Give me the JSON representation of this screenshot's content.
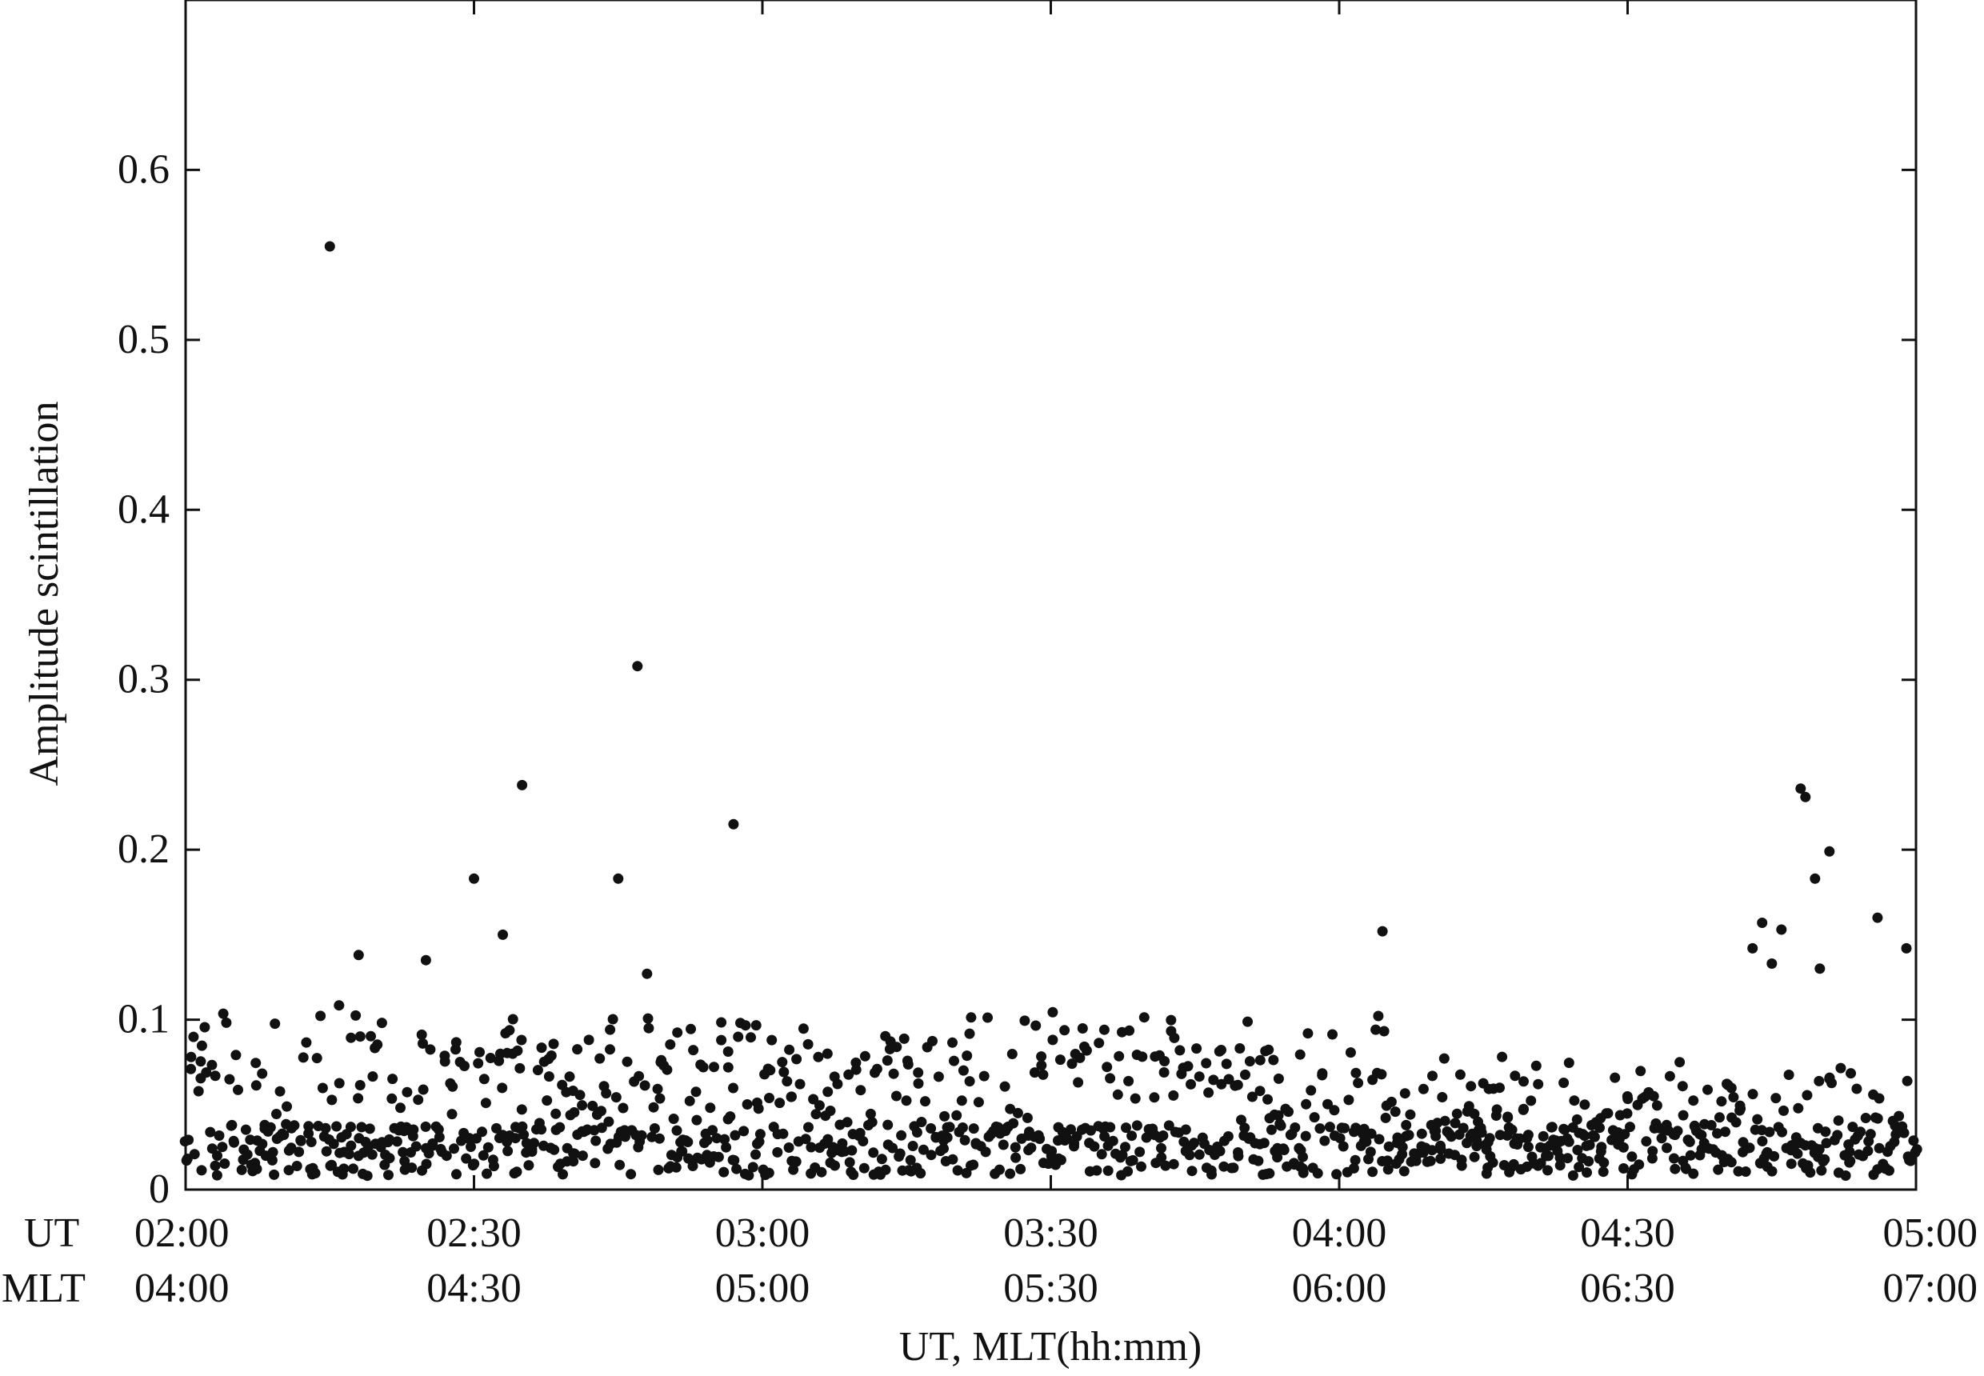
{
  "chart_data": {
    "type": "scatter",
    "title": "",
    "ylabel": "Amplitude scintillation",
    "xlabel": "UT, MLT(hh:mm)",
    "xlim": [
      0,
      180
    ],
    "ylim": [
      0,
      0.7
    ],
    "grid": false,
    "yticks": [
      {
        "value": 0,
        "label": "0"
      },
      {
        "value": 0.1,
        "label": "0.1"
      },
      {
        "value": 0.2,
        "label": "0.2"
      },
      {
        "value": 0.3,
        "label": "0.3"
      },
      {
        "value": 0.4,
        "label": "0.4"
      },
      {
        "value": 0.5,
        "label": "0.5"
      },
      {
        "value": 0.6,
        "label": "0.6"
      }
    ],
    "xtick_rows": [
      {
        "label": "UT",
        "ticks": [
          "02:00",
          "02:30",
          "03:00",
          "03:30",
          "04:00",
          "04:30",
          "05:00"
        ]
      },
      {
        "label": "MLT",
        "ticks": [
          "04:00",
          "04:30",
          "05:00",
          "05:30",
          "06:00",
          "06:30",
          "07:00"
        ]
      }
    ],
    "xtick_values": [
      0,
      30,
      60,
      90,
      120,
      150,
      180
    ],
    "highlight_points": [
      {
        "x": 15,
        "y": 0.555
      },
      {
        "x": 47,
        "y": 0.308
      },
      {
        "x": 35,
        "y": 0.238
      },
      {
        "x": 57,
        "y": 0.215
      },
      {
        "x": 168,
        "y": 0.236
      },
      {
        "x": 168.5,
        "y": 0.231
      },
      {
        "x": 171,
        "y": 0.199
      },
      {
        "x": 169.5,
        "y": 0.183
      },
      {
        "x": 30,
        "y": 0.183
      },
      {
        "x": 45,
        "y": 0.183
      },
      {
        "x": 124.5,
        "y": 0.152
      },
      {
        "x": 176,
        "y": 0.16
      },
      {
        "x": 179,
        "y": 0.142
      },
      {
        "x": 166,
        "y": 0.153
      },
      {
        "x": 164,
        "y": 0.157
      },
      {
        "x": 163,
        "y": 0.142
      },
      {
        "x": 165,
        "y": 0.133
      },
      {
        "x": 170,
        "y": 0.13
      },
      {
        "x": 48,
        "y": 0.127
      },
      {
        "x": 33,
        "y": 0.15
      },
      {
        "x": 18,
        "y": 0.138
      },
      {
        "x": 25,
        "y": 0.135
      }
    ],
    "bulk_series": {
      "x_start": 0,
      "x_end": 180,
      "x_step": 0.25,
      "description_values": "dense baseline cloud of points mostly between 0.0 and 0.1"
    }
  }
}
